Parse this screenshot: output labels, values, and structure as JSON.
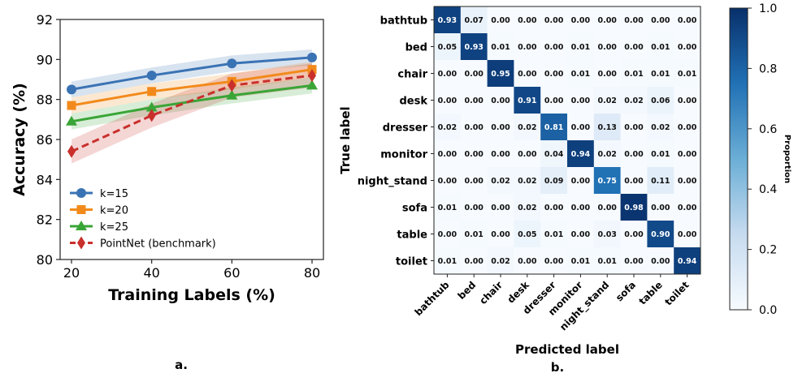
{
  "chart_data": [
    {
      "type": "line",
      "panel_label": "a.",
      "xlabel": "Training Labels (%)",
      "ylabel": "Accuracy (%)",
      "x": [
        20,
        40,
        60,
        80
      ],
      "xticks": [
        "20",
        "40",
        "60",
        "80"
      ],
      "yticks": [
        "80",
        "82",
        "84",
        "86",
        "88",
        "90",
        "92"
      ],
      "ylim": [
        80,
        92
      ],
      "legend_position": "lower-left",
      "series": [
        {
          "name": "k=15",
          "values": [
            88.5,
            89.2,
            89.8,
            90.1
          ],
          "band": 0.4,
          "color": "#3a73b4",
          "marker": "circle",
          "dashed": false
        },
        {
          "name": "k=20",
          "values": [
            87.7,
            88.4,
            88.9,
            89.5
          ],
          "band": 0.4,
          "color": "#f28a1b",
          "marker": "square",
          "dashed": false
        },
        {
          "name": "k=25",
          "values": [
            86.9,
            87.6,
            88.2,
            88.7
          ],
          "band": 0.4,
          "color": "#3aa537",
          "marker": "triangle",
          "dashed": false
        },
        {
          "name": "PointNet (benchmark)",
          "values": [
            85.4,
            87.2,
            88.7,
            89.2
          ],
          "band": 0.6,
          "color": "#c9302c",
          "marker": "diamond",
          "dashed": true
        }
      ]
    },
    {
      "type": "heatmap",
      "panel_label": "b.",
      "xlabel": "Predicted label",
      "ylabel": "True label",
      "colorbar_label": "Proportion",
      "colorbar_ticks": [
        "0.0",
        "0.2",
        "0.4",
        "0.6",
        "0.8",
        "1.0"
      ],
      "labels": [
        "bathtub",
        "bed",
        "chair",
        "desk",
        "dresser",
        "monitor",
        "night_stand",
        "sofa",
        "table",
        "toilet"
      ],
      "matrix": [
        [
          "0.93",
          "0.07",
          "0.00",
          "0.00",
          "0.00",
          "0.00",
          "0.00",
          "0.00",
          "0.00",
          "0.00"
        ],
        [
          "0.05",
          "0.93",
          "0.01",
          "0.00",
          "0.00",
          "0.01",
          "0.00",
          "0.00",
          "0.01",
          "0.00"
        ],
        [
          "0.00",
          "0.00",
          "0.95",
          "0.00",
          "0.00",
          "0.01",
          "0.00",
          "0.01",
          "0.01",
          "0.01"
        ],
        [
          "0.00",
          "0.00",
          "0.00",
          "0.91",
          "0.00",
          "0.00",
          "0.02",
          "0.02",
          "0.06",
          "0.00"
        ],
        [
          "0.02",
          "0.00",
          "0.00",
          "0.02",
          "0.81",
          "0.00",
          "0.13",
          "0.00",
          "0.02",
          "0.00"
        ],
        [
          "0.00",
          "0.00",
          "0.00",
          "0.00",
          "0.04",
          "0.94",
          "0.02",
          "0.00",
          "0.01",
          "0.00"
        ],
        [
          "0.00",
          "0.00",
          "0.02",
          "0.02",
          "0.09",
          "0.00",
          "0.75",
          "0.00",
          "0.11",
          "0.00"
        ],
        [
          "0.01",
          "0.00",
          "0.00",
          "0.02",
          "0.00",
          "0.00",
          "0.00",
          "0.98",
          "0.00",
          "0.00"
        ],
        [
          "0.00",
          "0.01",
          "0.00",
          "0.05",
          "0.01",
          "0.00",
          "0.03",
          "0.00",
          "0.90",
          "0.00"
        ],
        [
          "0.01",
          "0.00",
          "0.02",
          "0.00",
          "0.00",
          "0.01",
          "0.01",
          "0.00",
          "0.00",
          "0.94"
        ]
      ]
    }
  ]
}
